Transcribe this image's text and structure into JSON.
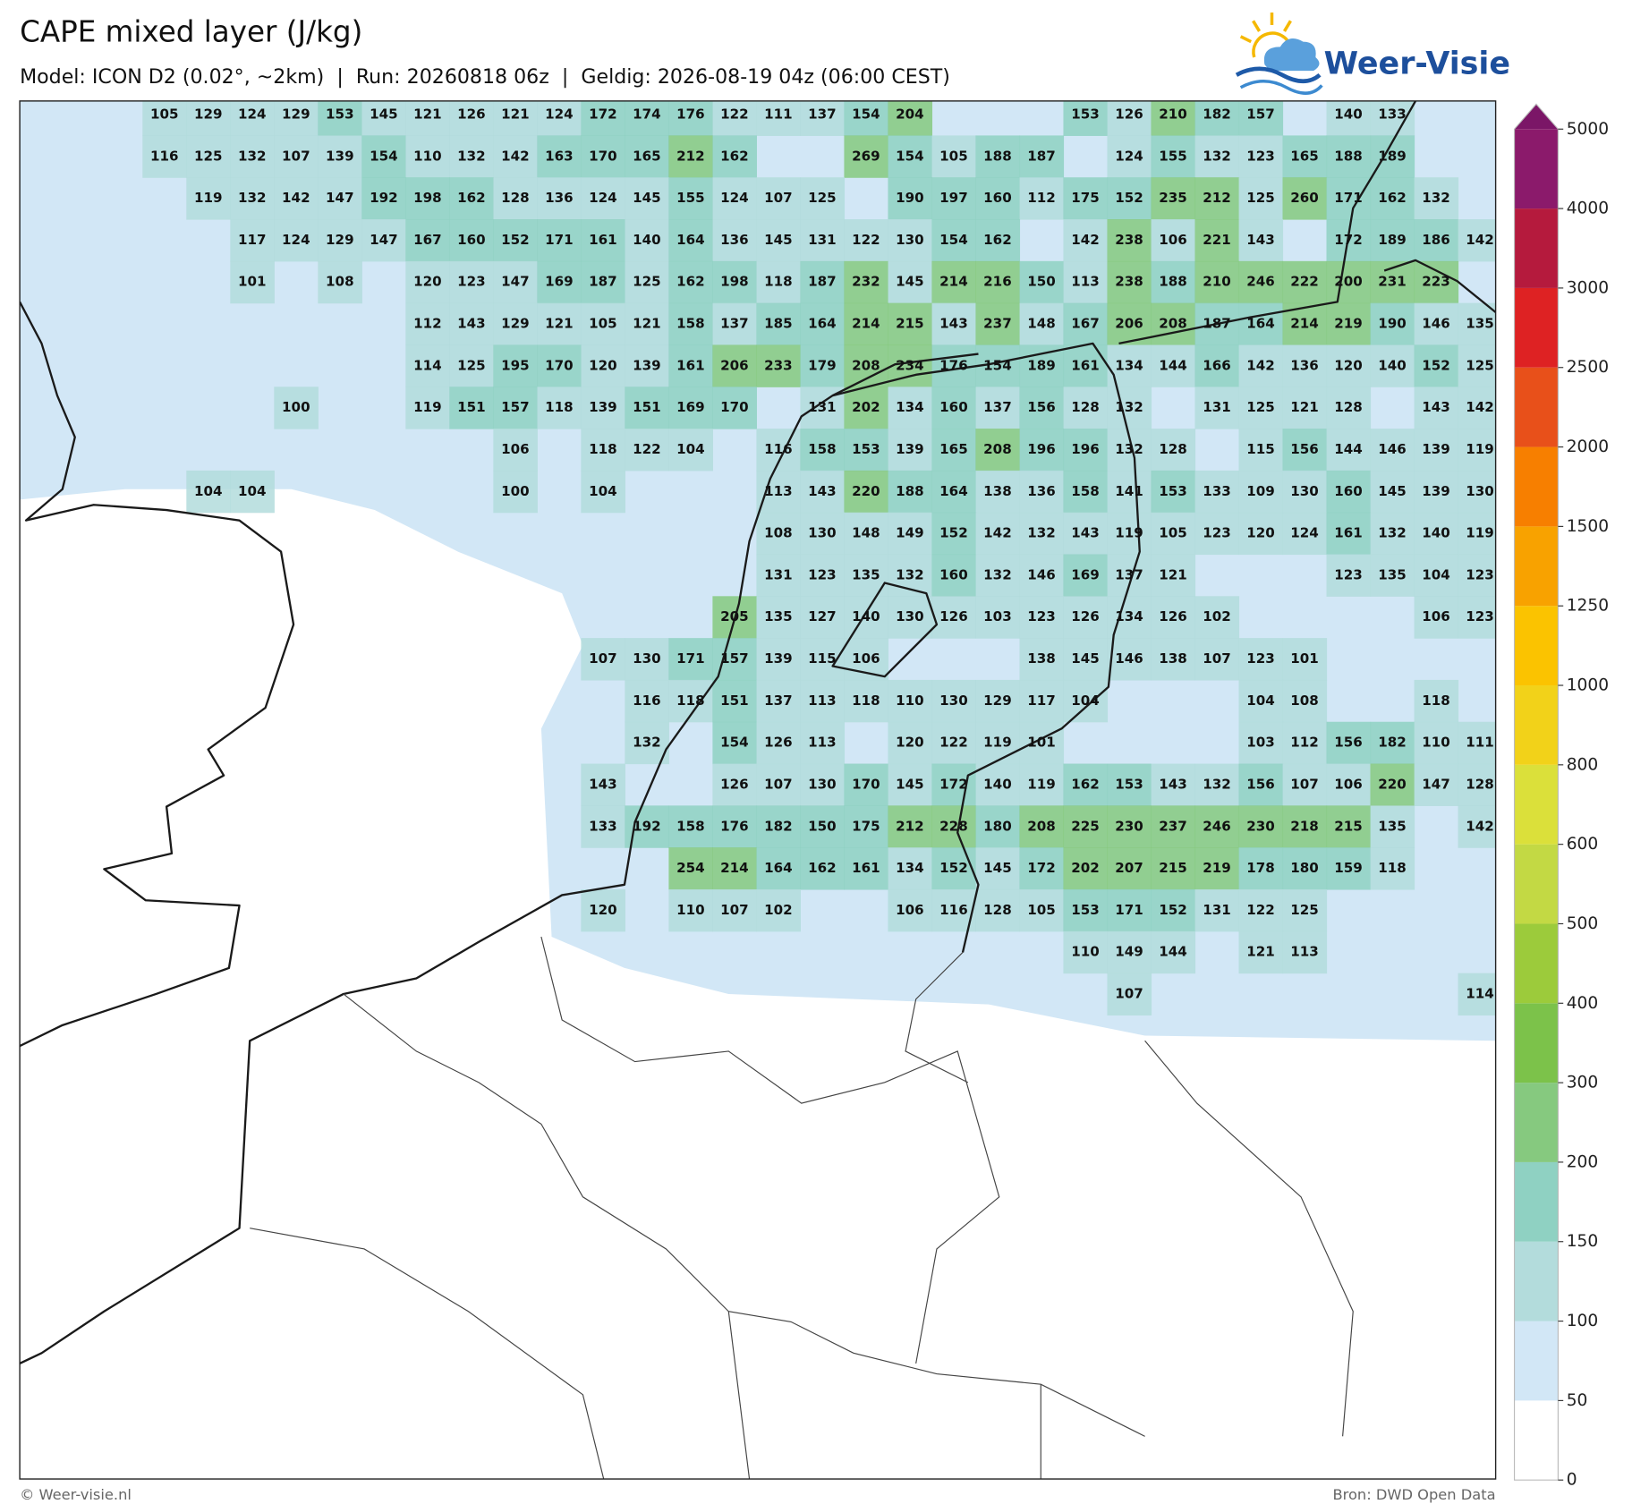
{
  "header": {
    "title": "CAPE mixed layer (J/kg)",
    "subtitle": "Model: ICON D2 (0.02°, ~2km)  |  Run: 20260818 06z  |  Geldig: 2026-08-19 04z (06:00 CEST)"
  },
  "logo": {
    "text": "Weer-Visie"
  },
  "map": {
    "values": [
      [
        105,
        129,
        124,
        129,
        153,
        145,
        121,
        126,
        121,
        124,
        172,
        174,
        176,
        122,
        111,
        137,
        154,
        204,
        null,
        null,
        null,
        153,
        126,
        210,
        182,
        157,
        null,
        140,
        133,
        null,
        null
      ],
      [
        116,
        125,
        132,
        107,
        139,
        154,
        110,
        132,
        142,
        163,
        170,
        165,
        212,
        162,
        null,
        null,
        269,
        154,
        105,
        188,
        187,
        null,
        124,
        155,
        132,
        123,
        165,
        188,
        189,
        null,
        null
      ],
      [
        null,
        119,
        132,
        142,
        147,
        192,
        198,
        162,
        128,
        136,
        124,
        145,
        155,
        124,
        107,
        125,
        null,
        190,
        197,
        160,
        112,
        175,
        152,
        235,
        212,
        125,
        260,
        171,
        162,
        132,
        null
      ],
      [
        null,
        null,
        117,
        124,
        129,
        147,
        167,
        160,
        152,
        171,
        161,
        140,
        164,
        136,
        145,
        131,
        122,
        130,
        154,
        162,
        null,
        142,
        238,
        106,
        221,
        143,
        null,
        172,
        189,
        186,
        142
      ],
      [
        null,
        null,
        101,
        null,
        108,
        null,
        120,
        123,
        147,
        169,
        187,
        125,
        162,
        198,
        118,
        187,
        232,
        145,
        214,
        216,
        150,
        113,
        238,
        188,
        210,
        246,
        222,
        200,
        231,
        223,
        null
      ],
      [
        null,
        null,
        null,
        null,
        null,
        null,
        112,
        143,
        129,
        121,
        105,
        121,
        158,
        137,
        185,
        164,
        214,
        215,
        143,
        237,
        148,
        167,
        206,
        208,
        187,
        164,
        214,
        219,
        190,
        146,
        135
      ],
      [
        null,
        null,
        null,
        null,
        null,
        null,
        114,
        125,
        195,
        170,
        120,
        139,
        161,
        206,
        233,
        179,
        208,
        234,
        176,
        154,
        189,
        161,
        134,
        144,
        166,
        142,
        136,
        120,
        140,
        152,
        125
      ],
      [
        null,
        null,
        null,
        100,
        null,
        null,
        119,
        151,
        157,
        118,
        139,
        151,
        169,
        170,
        null,
        131,
        202,
        134,
        160,
        137,
        156,
        128,
        132,
        null,
        131,
        125,
        121,
        128,
        null,
        143,
        142
      ],
      [
        null,
        null,
        null,
        null,
        null,
        null,
        null,
        null,
        106,
        null,
        118,
        122,
        104,
        null,
        116,
        158,
        153,
        139,
        165,
        208,
        196,
        196,
        132,
        128,
        null,
        115,
        156,
        144,
        146,
        139,
        119
      ],
      [
        null,
        104,
        104,
        null,
        null,
        null,
        null,
        null,
        100,
        null,
        104,
        null,
        null,
        null,
        113,
        143,
        220,
        188,
        164,
        138,
        136,
        158,
        141,
        153,
        133,
        109,
        130,
        160,
        145,
        139,
        130
      ],
      [
        null,
        null,
        null,
        null,
        null,
        null,
        null,
        null,
        null,
        null,
        null,
        null,
        null,
        null,
        108,
        130,
        148,
        149,
        152,
        142,
        132,
        143,
        119,
        105,
        123,
        120,
        124,
        161,
        132,
        140,
        119
      ],
      [
        null,
        null,
        null,
        null,
        null,
        null,
        null,
        null,
        null,
        null,
        null,
        null,
        null,
        null,
        131,
        123,
        135,
        132,
        160,
        132,
        146,
        169,
        137,
        121,
        null,
        null,
        null,
        123,
        135,
        104,
        123
      ],
      [
        null,
        null,
        null,
        null,
        null,
        null,
        null,
        null,
        null,
        null,
        null,
        null,
        null,
        205,
        135,
        127,
        140,
        130,
        126,
        103,
        123,
        126,
        134,
        126,
        102,
        null,
        null,
        null,
        null,
        106,
        123
      ],
      [
        null,
        null,
        null,
        null,
        null,
        null,
        null,
        null,
        null,
        null,
        107,
        130,
        171,
        157,
        139,
        115,
        106,
        null,
        null,
        null,
        138,
        145,
        146,
        138,
        107,
        123,
        101,
        null,
        null,
        null,
        null
      ],
      [
        null,
        null,
        null,
        null,
        null,
        null,
        null,
        null,
        null,
        null,
        null,
        116,
        118,
        151,
        137,
        113,
        118,
        110,
        130,
        129,
        117,
        104,
        null,
        null,
        null,
        104,
        108,
        null,
        null,
        118,
        null
      ],
      [
        null,
        null,
        null,
        null,
        null,
        null,
        null,
        null,
        null,
        null,
        null,
        132,
        null,
        154,
        126,
        113,
        null,
        120,
        122,
        119,
        101,
        null,
        null,
        null,
        null,
        103,
        112,
        156,
        182,
        110,
        111
      ],
      [
        null,
        null,
        null,
        null,
        null,
        null,
        null,
        null,
        null,
        null,
        143,
        null,
        null,
        126,
        107,
        130,
        170,
        145,
        172,
        140,
        119,
        162,
        153,
        143,
        132,
        156,
        107,
        106,
        220,
        147,
        128
      ],
      [
        null,
        null,
        null,
        null,
        null,
        null,
        null,
        null,
        null,
        null,
        133,
        192,
        158,
        176,
        182,
        150,
        175,
        212,
        228,
        180,
        208,
        225,
        230,
        237,
        246,
        230,
        218,
        215,
        135,
        null,
        142
      ],
      [
        null,
        null,
        null,
        null,
        null,
        null,
        null,
        null,
        null,
        null,
        null,
        null,
        254,
        214,
        164,
        162,
        161,
        134,
        152,
        145,
        172,
        202,
        207,
        215,
        219,
        178,
        180,
        159,
        118,
        null,
        null
      ],
      [
        null,
        null,
        null,
        null,
        null,
        null,
        null,
        null,
        null,
        null,
        120,
        null,
        110,
        107,
        102,
        null,
        null,
        106,
        116,
        128,
        105,
        153,
        171,
        152,
        131,
        122,
        125,
        null,
        null,
        null,
        null
      ],
      [
        null,
        null,
        null,
        null,
        null,
        null,
        null,
        null,
        null,
        null,
        null,
        null,
        null,
        null,
        null,
        null,
        null,
        null,
        null,
        null,
        null,
        110,
        149,
        144,
        null,
        121,
        113,
        null,
        null,
        null,
        null
      ],
      [
        null,
        null,
        null,
        null,
        null,
        null,
        null,
        null,
        null,
        null,
        null,
        null,
        null,
        null,
        null,
        null,
        null,
        null,
        null,
        null,
        null,
        null,
        107,
        null,
        null,
        null,
        null,
        null,
        null,
        null,
        114
      ]
    ]
  },
  "colorbar": {
    "levels": [
      0,
      50,
      100,
      150,
      200,
      300,
      400,
      500,
      600,
      800,
      1000,
      1250,
      1500,
      2000,
      2500,
      3000,
      4000,
      5000
    ],
    "colors": [
      "#ffffff",
      "#d2e7f6",
      "#b3dcdc",
      "#8fd1c2",
      "#86c97f",
      "#7cc24a",
      "#9ccb3b",
      "#c3d944",
      "#dbe03a",
      "#f2d219",
      "#fbc300",
      "#f8a200",
      "#f77f00",
      "#e8501a",
      "#de2223",
      "#b51a3d",
      "#8b1a6b"
    ],
    "over_color": "#7b1667"
  },
  "footer": {
    "left": "© Weer-visie.nl",
    "right": "Bron: DWD Open Data"
  }
}
